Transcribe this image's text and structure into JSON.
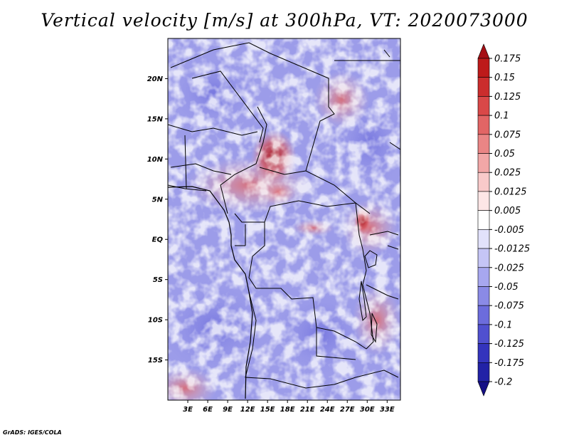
{
  "chart_data": {
    "type": "heatmap",
    "title": "Vertical velocity [m/s] at 300hPa, VT: 2020073000",
    "variable": "Vertical velocity",
    "units": "m/s",
    "pressure_level": "300hPa",
    "valid_time": "2020073000",
    "lon_range": [
      0,
      35
    ],
    "lat_range": [
      -20,
      25
    ],
    "x_ticks": [
      {
        "value": 3,
        "label": "3E"
      },
      {
        "value": 6,
        "label": "6E"
      },
      {
        "value": 9,
        "label": "9E"
      },
      {
        "value": 12,
        "label": "12E"
      },
      {
        "value": 15,
        "label": "15E"
      },
      {
        "value": 18,
        "label": "18E"
      },
      {
        "value": 21,
        "label": "21E"
      },
      {
        "value": 24,
        "label": "24E"
      },
      {
        "value": 27,
        "label": "27E"
      },
      {
        "value": 30,
        "label": "30E"
      },
      {
        "value": 33,
        "label": "33E"
      }
    ],
    "y_ticks": [
      {
        "value": 20,
        "label": "20N"
      },
      {
        "value": 15,
        "label": "15N"
      },
      {
        "value": 10,
        "label": "10N"
      },
      {
        "value": 5,
        "label": "5N"
      },
      {
        "value": 0,
        "label": "EQ"
      },
      {
        "value": -5,
        "label": "5S"
      },
      {
        "value": -10,
        "label": "10S"
      },
      {
        "value": -15,
        "label": "15S"
      }
    ],
    "colorbar": {
      "labels": [
        "0.175",
        "0.15",
        "0.125",
        "0.1",
        "0.075",
        "0.05",
        "0.025",
        "0.0125",
        "0.005",
        "-0.005",
        "-0.0125",
        "-0.025",
        "-0.05",
        "-0.075",
        "-0.1",
        "-0.125",
        "-0.175",
        "-0.2"
      ],
      "colors": [
        "#a50f15",
        "#bd1a1a",
        "#cb2d2d",
        "#d94848",
        "#e26565",
        "#ea8585",
        "#f2a7a7",
        "#f9caca",
        "#fde6e6",
        "#ffffff",
        "#e2e2fb",
        "#c5c5f6",
        "#a7a7ef",
        "#8a8ae6",
        "#6c6cdc",
        "#5050cf",
        "#3434bd",
        "#2222a6",
        "#150f85"
      ]
    }
  },
  "footer": {
    "credit": "GrADS: IGES/COLA"
  }
}
